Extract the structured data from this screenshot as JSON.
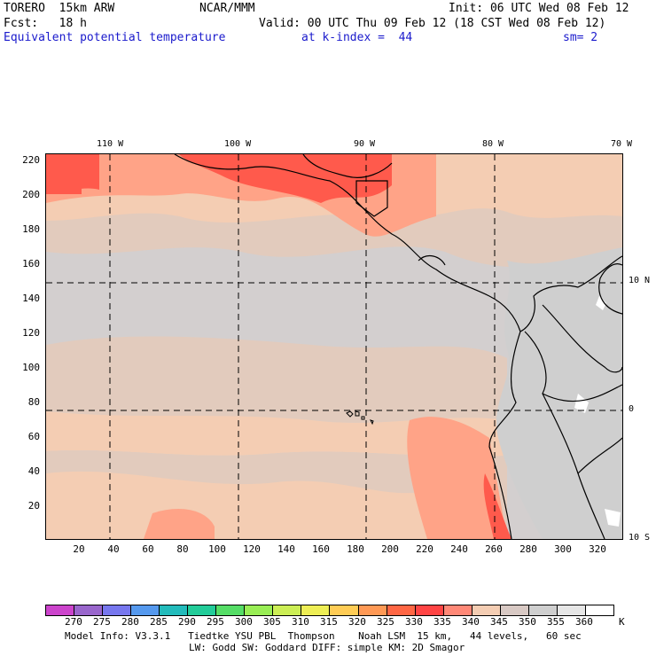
{
  "header": {
    "model": "TORERO  15km ARW",
    "center": "NCAR/MMM",
    "init": "Init: 06 UTC Wed 08 Feb 12",
    "fcst": "Fcst:   18 h",
    "valid": "Valid: 00 UTC Thu 09 Feb 12 (18 CST Wed 08 Feb 12)",
    "field": "Equivalent potential temperature",
    "level": "at k-index =  44",
    "smooth": "sm= 2"
  },
  "map": {
    "longitude_labels": [
      "110 W",
      "100 W",
      "90 W",
      "80 W",
      "70 W"
    ],
    "latitude_labels": [
      "10 N",
      "0",
      "10 S"
    ],
    "y_grid_labels": [
      "220",
      "200",
      "180",
      "160",
      "140",
      "120",
      "100",
      "80",
      "60",
      "40",
      "20"
    ],
    "x_grid_labels": [
      "20",
      "40",
      "60",
      "80",
      "100",
      "120",
      "140",
      "160",
      "180",
      "200",
      "220",
      "240",
      "260",
      "280",
      "300",
      "320"
    ]
  },
  "colorbar": {
    "unit": "K",
    "labels": [
      "270",
      "275",
      "280",
      "285",
      "290",
      "295",
      "300",
      "305",
      "310",
      "315",
      "320",
      "325",
      "330",
      "335",
      "340",
      "345",
      "350",
      "355",
      "360"
    ],
    "colors": [
      "#cc44cc",
      "#9966cc",
      "#7777ee",
      "#5599ee",
      "#22bbbb",
      "#22cc99",
      "#55dd66",
      "#99ee55",
      "#ccee55",
      "#eeee55",
      "#ffcc55",
      "#ff9955",
      "#ff6644",
      "#ff4444",
      "#ff8877",
      "#f4cdb3",
      "#d8c9c4",
      "#cfcfcf",
      "#e6e6e6",
      "#ffffff"
    ]
  },
  "footer": {
    "line1": "Model Info: V3.3.1   Tiedtke YSU PBL  Thompson    Noah LSM  15 km,   44 levels,   60 sec",
    "line2": "LW: Godd SW: Goddard DIFF: simple KM: 2D Smagor"
  }
}
